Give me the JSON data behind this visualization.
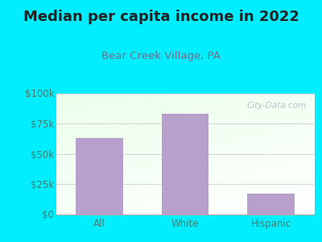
{
  "title": "Median per capita income in 2022",
  "subtitle": "Bear Creek Village, PA",
  "categories": [
    "All",
    "White",
    "Hispanic"
  ],
  "values": [
    63000,
    83000,
    17000
  ],
  "bar_color": "#b8a0cc",
  "title_color": "#222222",
  "subtitle_color": "#7a6a8a",
  "ylabel_color": "#4a7a6a",
  "xlabel_color": "#4a7a6a",
  "bg_outer": "#00eeff",
  "ylim": [
    0,
    100000
  ],
  "yticks": [
    0,
    25000,
    50000,
    75000,
    100000
  ],
  "ytick_labels": [
    "$0",
    "$25k",
    "$50k",
    "$75k",
    "$100k"
  ],
  "watermark": "City-Data.com",
  "title_fontsize": 13,
  "subtitle_fontsize": 9.5,
  "tick_fontsize": 8.5,
  "bar_width": 0.55
}
